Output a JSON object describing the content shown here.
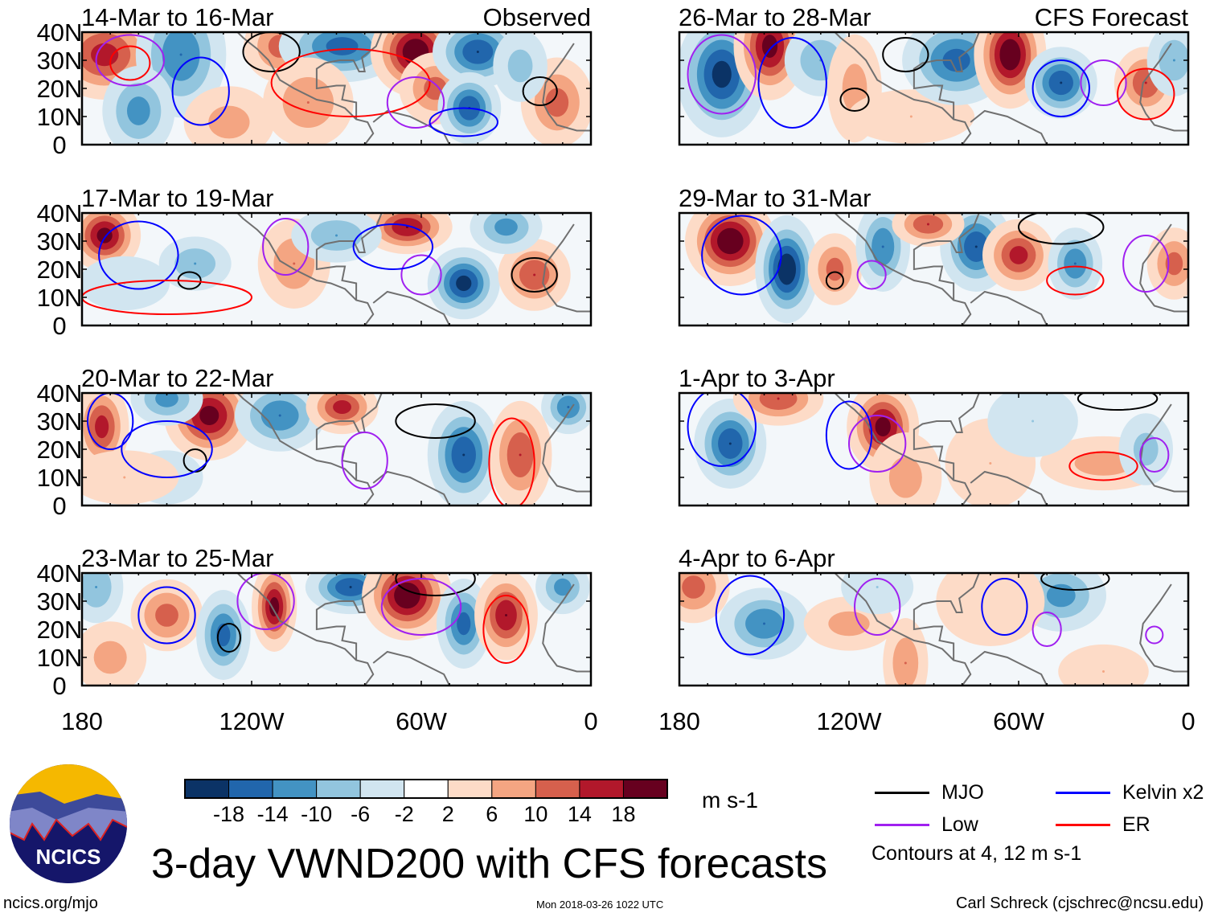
{
  "chart_data": {
    "type": "heatmap",
    "title": "3-day VWND200 with CFS forecasts",
    "variable_units": "m s-1",
    "levels": [
      -18,
      -14,
      -10,
      -6,
      -2,
      2,
      6,
      10,
      14,
      18
    ],
    "level_colors": [
      "#0b3366",
      "#2166ac",
      "#4393c3",
      "#92c5de",
      "#d1e5f0",
      "#ffffff",
      "#fddbc7",
      "#f4a582",
      "#d6604d",
      "#b2182b",
      "#67001f"
    ],
    "x_ticks": [
      "180",
      "120W",
      "60W",
      "0"
    ],
    "x_tick_values": [
      -180,
      -120,
      -60,
      0
    ],
    "y_ticks": [
      "40N",
      "30N",
      "20N",
      "10N",
      "0"
    ],
    "y_tick_values": [
      40,
      30,
      20,
      10,
      0
    ],
    "xlim": [
      -180,
      0
    ],
    "ylim": [
      0,
      40
    ],
    "column_headers": {
      "observed": "Observed",
      "forecast": "CFS Forecast"
    },
    "panels": [
      {
        "label": "14-Mar to 16-Mar",
        "col": 0,
        "row": 0,
        "anomalies": [
          [
            -172,
            32,
            16,
            12,
            10
          ],
          [
            -145,
            32,
            -14,
            10,
            14
          ],
          [
            -160,
            12,
            -12,
            8,
            10
          ],
          [
            -128,
            8,
            8,
            10,
            8
          ],
          [
            -110,
            35,
            12,
            8,
            8
          ],
          [
            -88,
            35,
            -16,
            14,
            8
          ],
          [
            -100,
            15,
            10,
            10,
            10
          ],
          [
            -62,
            33,
            22,
            10,
            10
          ],
          [
            -55,
            20,
            12,
            8,
            8
          ],
          [
            -40,
            33,
            -18,
            10,
            8
          ],
          [
            -43,
            13,
            -18,
            7,
            8
          ],
          [
            -12,
            15,
            12,
            8,
            10
          ],
          [
            -25,
            28,
            -8,
            6,
            8
          ]
        ],
        "contours": [
          [
            "MJO",
            -113,
            33,
            10,
            7
          ],
          [
            "Kelvin x2",
            -138,
            19,
            10,
            12
          ],
          [
            "Low",
            -163,
            30,
            12,
            9
          ],
          [
            "ER",
            -163,
            29,
            7,
            6
          ],
          [
            "ER",
            -85,
            22,
            28,
            12
          ],
          [
            "Low",
            -62,
            15,
            10,
            9
          ],
          [
            "Kelvin x2",
            -45,
            8,
            12,
            5
          ],
          [
            "MJO",
            -18,
            19,
            6,
            5
          ]
        ]
      },
      {
        "label": "26-Mar to 28-Mar",
        "col": 1,
        "row": 0,
        "anomalies": [
          [
            -165,
            25,
            -20,
            10,
            14
          ],
          [
            -148,
            35,
            20,
            8,
            12
          ],
          [
            -130,
            30,
            -10,
            8,
            8
          ],
          [
            -118,
            20,
            8,
            6,
            12
          ],
          [
            -98,
            10,
            6,
            14,
            6
          ],
          [
            -82,
            30,
            -16,
            12,
            10
          ],
          [
            -63,
            32,
            22,
            8,
            12
          ],
          [
            -45,
            22,
            -18,
            8,
            8
          ],
          [
            -15,
            22,
            14,
            7,
            8
          ],
          [
            -5,
            30,
            -10,
            6,
            8
          ]
        ],
        "contours": [
          [
            "MJO",
            -118,
            16,
            5,
            4
          ],
          [
            "MJO",
            -100,
            32,
            8,
            6
          ],
          [
            "Kelvin x2",
            -140,
            22,
            12,
            16
          ],
          [
            "Low",
            -30,
            22,
            8,
            8
          ],
          [
            "ER",
            -15,
            18,
            10,
            9
          ],
          [
            "Kelvin x2",
            -45,
            20,
            10,
            10
          ],
          [
            "Low",
            -165,
            25,
            12,
            14
          ]
        ]
      },
      {
        "label": "17-Mar to 19-Mar",
        "col": 0,
        "row": 1,
        "anomalies": [
          [
            -172,
            32,
            20,
            8,
            8
          ],
          [
            -140,
            22,
            -10,
            8,
            6
          ],
          [
            -105,
            22,
            10,
            8,
            10
          ],
          [
            -65,
            35,
            18,
            10,
            6
          ],
          [
            -45,
            15,
            -20,
            8,
            8
          ],
          [
            -20,
            18,
            14,
            8,
            8
          ],
          [
            -165,
            15,
            -6,
            10,
            6
          ],
          [
            -90,
            32,
            -10,
            10,
            6
          ],
          [
            -30,
            35,
            -12,
            8,
            6
          ]
        ],
        "contours": [
          [
            "MJO",
            -142,
            16,
            4,
            3
          ],
          [
            "MJO",
            -20,
            18,
            8,
            6
          ],
          [
            "Kelvin x2",
            -160,
            25,
            14,
            12
          ],
          [
            "Low",
            -108,
            28,
            8,
            10
          ],
          [
            "Low",
            -60,
            18,
            7,
            7
          ],
          [
            "ER",
            -150,
            10,
            30,
            6
          ],
          [
            "Kelvin x2",
            -70,
            28,
            14,
            8
          ]
        ]
      },
      {
        "label": "29-Mar to 31-Mar",
        "col": 1,
        "row": 1,
        "anomalies": [
          [
            -162,
            30,
            22,
            10,
            10
          ],
          [
            -142,
            20,
            -22,
            7,
            12
          ],
          [
            -125,
            20,
            12,
            6,
            8
          ],
          [
            -108,
            28,
            -14,
            6,
            10
          ],
          [
            -75,
            28,
            -18,
            8,
            10
          ],
          [
            -60,
            25,
            16,
            8,
            8
          ],
          [
            -40,
            22,
            -14,
            6,
            8
          ],
          [
            -5,
            22,
            12,
            6,
            8
          ],
          [
            -92,
            36,
            14,
            8,
            5
          ]
        ],
        "contours": [
          [
            "MJO",
            -125,
            16,
            3,
            3
          ],
          [
            "MJO",
            -45,
            35,
            15,
            6
          ],
          [
            "Kelvin x2",
            -158,
            25,
            14,
            14
          ],
          [
            "Low",
            -112,
            18,
            5,
            5
          ],
          [
            "ER",
            -40,
            16,
            10,
            5
          ],
          [
            "Low",
            -15,
            22,
            8,
            10
          ]
        ]
      },
      {
        "label": "20-Mar to 22-Mar",
        "col": 0,
        "row": 2,
        "anomalies": [
          [
            -173,
            28,
            16,
            6,
            10
          ],
          [
            -135,
            32,
            20,
            10,
            10
          ],
          [
            -150,
            38,
            -12,
            8,
            6
          ],
          [
            -110,
            32,
            -14,
            10,
            8
          ],
          [
            -150,
            10,
            -4,
            8,
            6
          ],
          [
            -88,
            35,
            16,
            8,
            6
          ],
          [
            -45,
            18,
            -18,
            8,
            12
          ],
          [
            -25,
            18,
            14,
            7,
            12
          ],
          [
            -8,
            35,
            -14,
            6,
            6
          ],
          [
            -165,
            10,
            6,
            12,
            6
          ]
        ],
        "contours": [
          [
            "MJO",
            -140,
            16,
            4,
            4
          ],
          [
            "MJO",
            -55,
            30,
            14,
            6
          ],
          [
            "Kelvin x2",
            -150,
            20,
            16,
            10
          ],
          [
            "Low",
            -80,
            16,
            8,
            10
          ],
          [
            "ER",
            -28,
            15,
            8,
            16
          ],
          [
            "Kelvin x2",
            -170,
            30,
            8,
            10
          ]
        ]
      },
      {
        "label": "1-Apr to 3-Apr",
        "col": 1,
        "row": 2,
        "anomalies": [
          [
            -162,
            22,
            -18,
            8,
            10
          ],
          [
            -145,
            38,
            14,
            10,
            6
          ],
          [
            -108,
            28,
            20,
            8,
            10
          ],
          [
            -100,
            10,
            8,
            8,
            10
          ],
          [
            -70,
            15,
            6,
            10,
            10
          ],
          [
            -30,
            15,
            8,
            14,
            6
          ],
          [
            -15,
            20,
            -8,
            6,
            8
          ],
          [
            -55,
            30,
            -6,
            10,
            8
          ]
        ],
        "contours": [
          [
            "MJO",
            -25,
            38,
            14,
            4
          ],
          [
            "Kelvin x2",
            -165,
            28,
            12,
            14
          ],
          [
            "Low",
            -110,
            22,
            10,
            10
          ],
          [
            "ER",
            -30,
            14,
            12,
            5
          ],
          [
            "Low",
            -12,
            18,
            5,
            6
          ],
          [
            "Kelvin x2",
            -120,
            25,
            8,
            12
          ]
        ]
      },
      {
        "label": "23-Mar to 25-Mar",
        "col": 0,
        "row": 3,
        "anomalies": [
          [
            -150,
            25,
            12,
            8,
            8
          ],
          [
            -130,
            18,
            -16,
            6,
            10
          ],
          [
            -112,
            28,
            20,
            5,
            10
          ],
          [
            -85,
            35,
            -18,
            10,
            6
          ],
          [
            -65,
            32,
            22,
            10,
            10
          ],
          [
            -45,
            22,
            -16,
            6,
            10
          ],
          [
            -30,
            25,
            18,
            7,
            10
          ],
          [
            -175,
            35,
            -10,
            6,
            8
          ],
          [
            -170,
            10,
            8,
            8,
            8
          ],
          [
            -10,
            35,
            -12,
            6,
            6
          ]
        ],
        "contours": [
          [
            "MJO",
            -128,
            17,
            4,
            5
          ],
          [
            "MJO",
            -55,
            38,
            14,
            6
          ],
          [
            "Kelvin x2",
            -150,
            25,
            10,
            10
          ],
          [
            "Low",
            -115,
            30,
            10,
            10
          ],
          [
            "ER",
            -30,
            20,
            8,
            12
          ],
          [
            "Low",
            -60,
            28,
            14,
            10
          ]
        ]
      },
      {
        "label": "4-Apr to 6-Apr",
        "col": 1,
        "row": 3,
        "anomalies": [
          [
            -175,
            35,
            12,
            8,
            8
          ],
          [
            -150,
            22,
            -14,
            10,
            8
          ],
          [
            -120,
            22,
            8,
            10,
            6
          ],
          [
            -100,
            8,
            10,
            5,
            10
          ],
          [
            -45,
            32,
            -12,
            10,
            8
          ],
          [
            -70,
            30,
            4,
            12,
            10
          ],
          [
            -110,
            35,
            -6,
            8,
            6
          ],
          [
            -30,
            5,
            6,
            10,
            6
          ]
        ],
        "contours": [
          [
            "MJO",
            -40,
            38,
            12,
            4
          ],
          [
            "Kelvin x2",
            -155,
            25,
            12,
            14
          ],
          [
            "Low",
            -110,
            28,
            8,
            10
          ],
          [
            "Kelvin x2",
            -65,
            28,
            8,
            10
          ],
          [
            "Low",
            -50,
            20,
            5,
            6
          ],
          [
            "Low",
            -12,
            18,
            3,
            3
          ]
        ]
      }
    ],
    "legend": [
      {
        "name": "MJO",
        "color": "#000000"
      },
      {
        "name": "Kelvin x2",
        "color": "#0000ff"
      },
      {
        "name": "Low",
        "color": "#a020f0"
      },
      {
        "name": "ER",
        "color": "#ff0000"
      }
    ],
    "legend_note": "Contours at 4, 12 m s-1"
  },
  "footer": {
    "logo_text": "NCICS",
    "url": "ncics.org/mjo",
    "timestamp": "Mon 2018-03-26 1022 UTC",
    "credit": "Carl Schreck (cjschrec@ncsu.edu)"
  }
}
